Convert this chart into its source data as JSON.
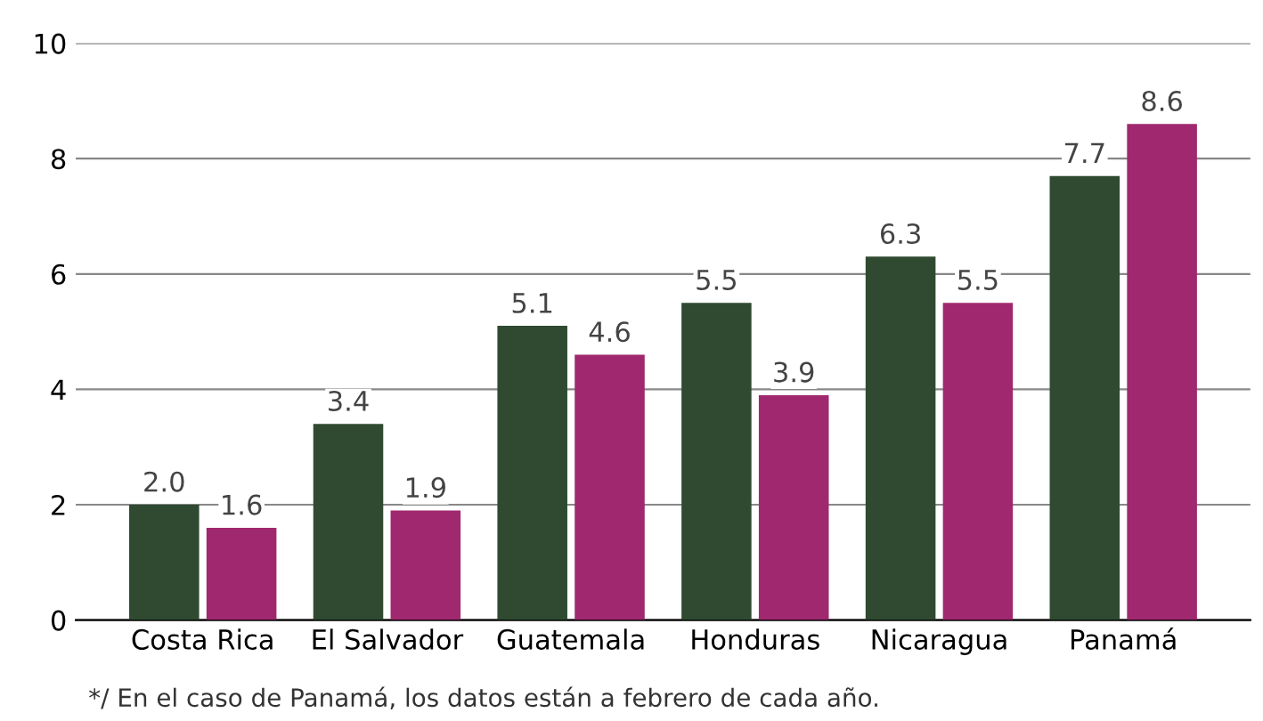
{
  "chart_data": {
    "type": "bar",
    "categories": [
      "Costa Rica",
      "El Salvador",
      "Guatemala",
      "Honduras",
      "Nicaragua",
      "Panamá"
    ],
    "series": [
      {
        "color": "#2f4a30",
        "values": [
          2.0,
          3.4,
          5.1,
          5.5,
          6.3,
          7.7
        ],
        "value_labels": [
          "2.0",
          "3.4",
          "5.1",
          "5.5",
          "6.3",
          "7.7"
        ]
      },
      {
        "color": "#a0286e",
        "values": [
          1.6,
          1.9,
          4.6,
          3.9,
          5.5,
          8.6
        ],
        "value_labels": [
          "1.6",
          "1.9",
          "4.6",
          "3.9",
          "5.5",
          "8.6"
        ]
      }
    ],
    "ylim": [
      0,
      10
    ],
    "yticks": [
      0,
      2,
      4,
      6,
      8,
      10
    ],
    "grid": "y",
    "legend": false,
    "annotations": [
      "*/ En el caso de Panamá, los datos están a febrero de cada año."
    ]
  }
}
